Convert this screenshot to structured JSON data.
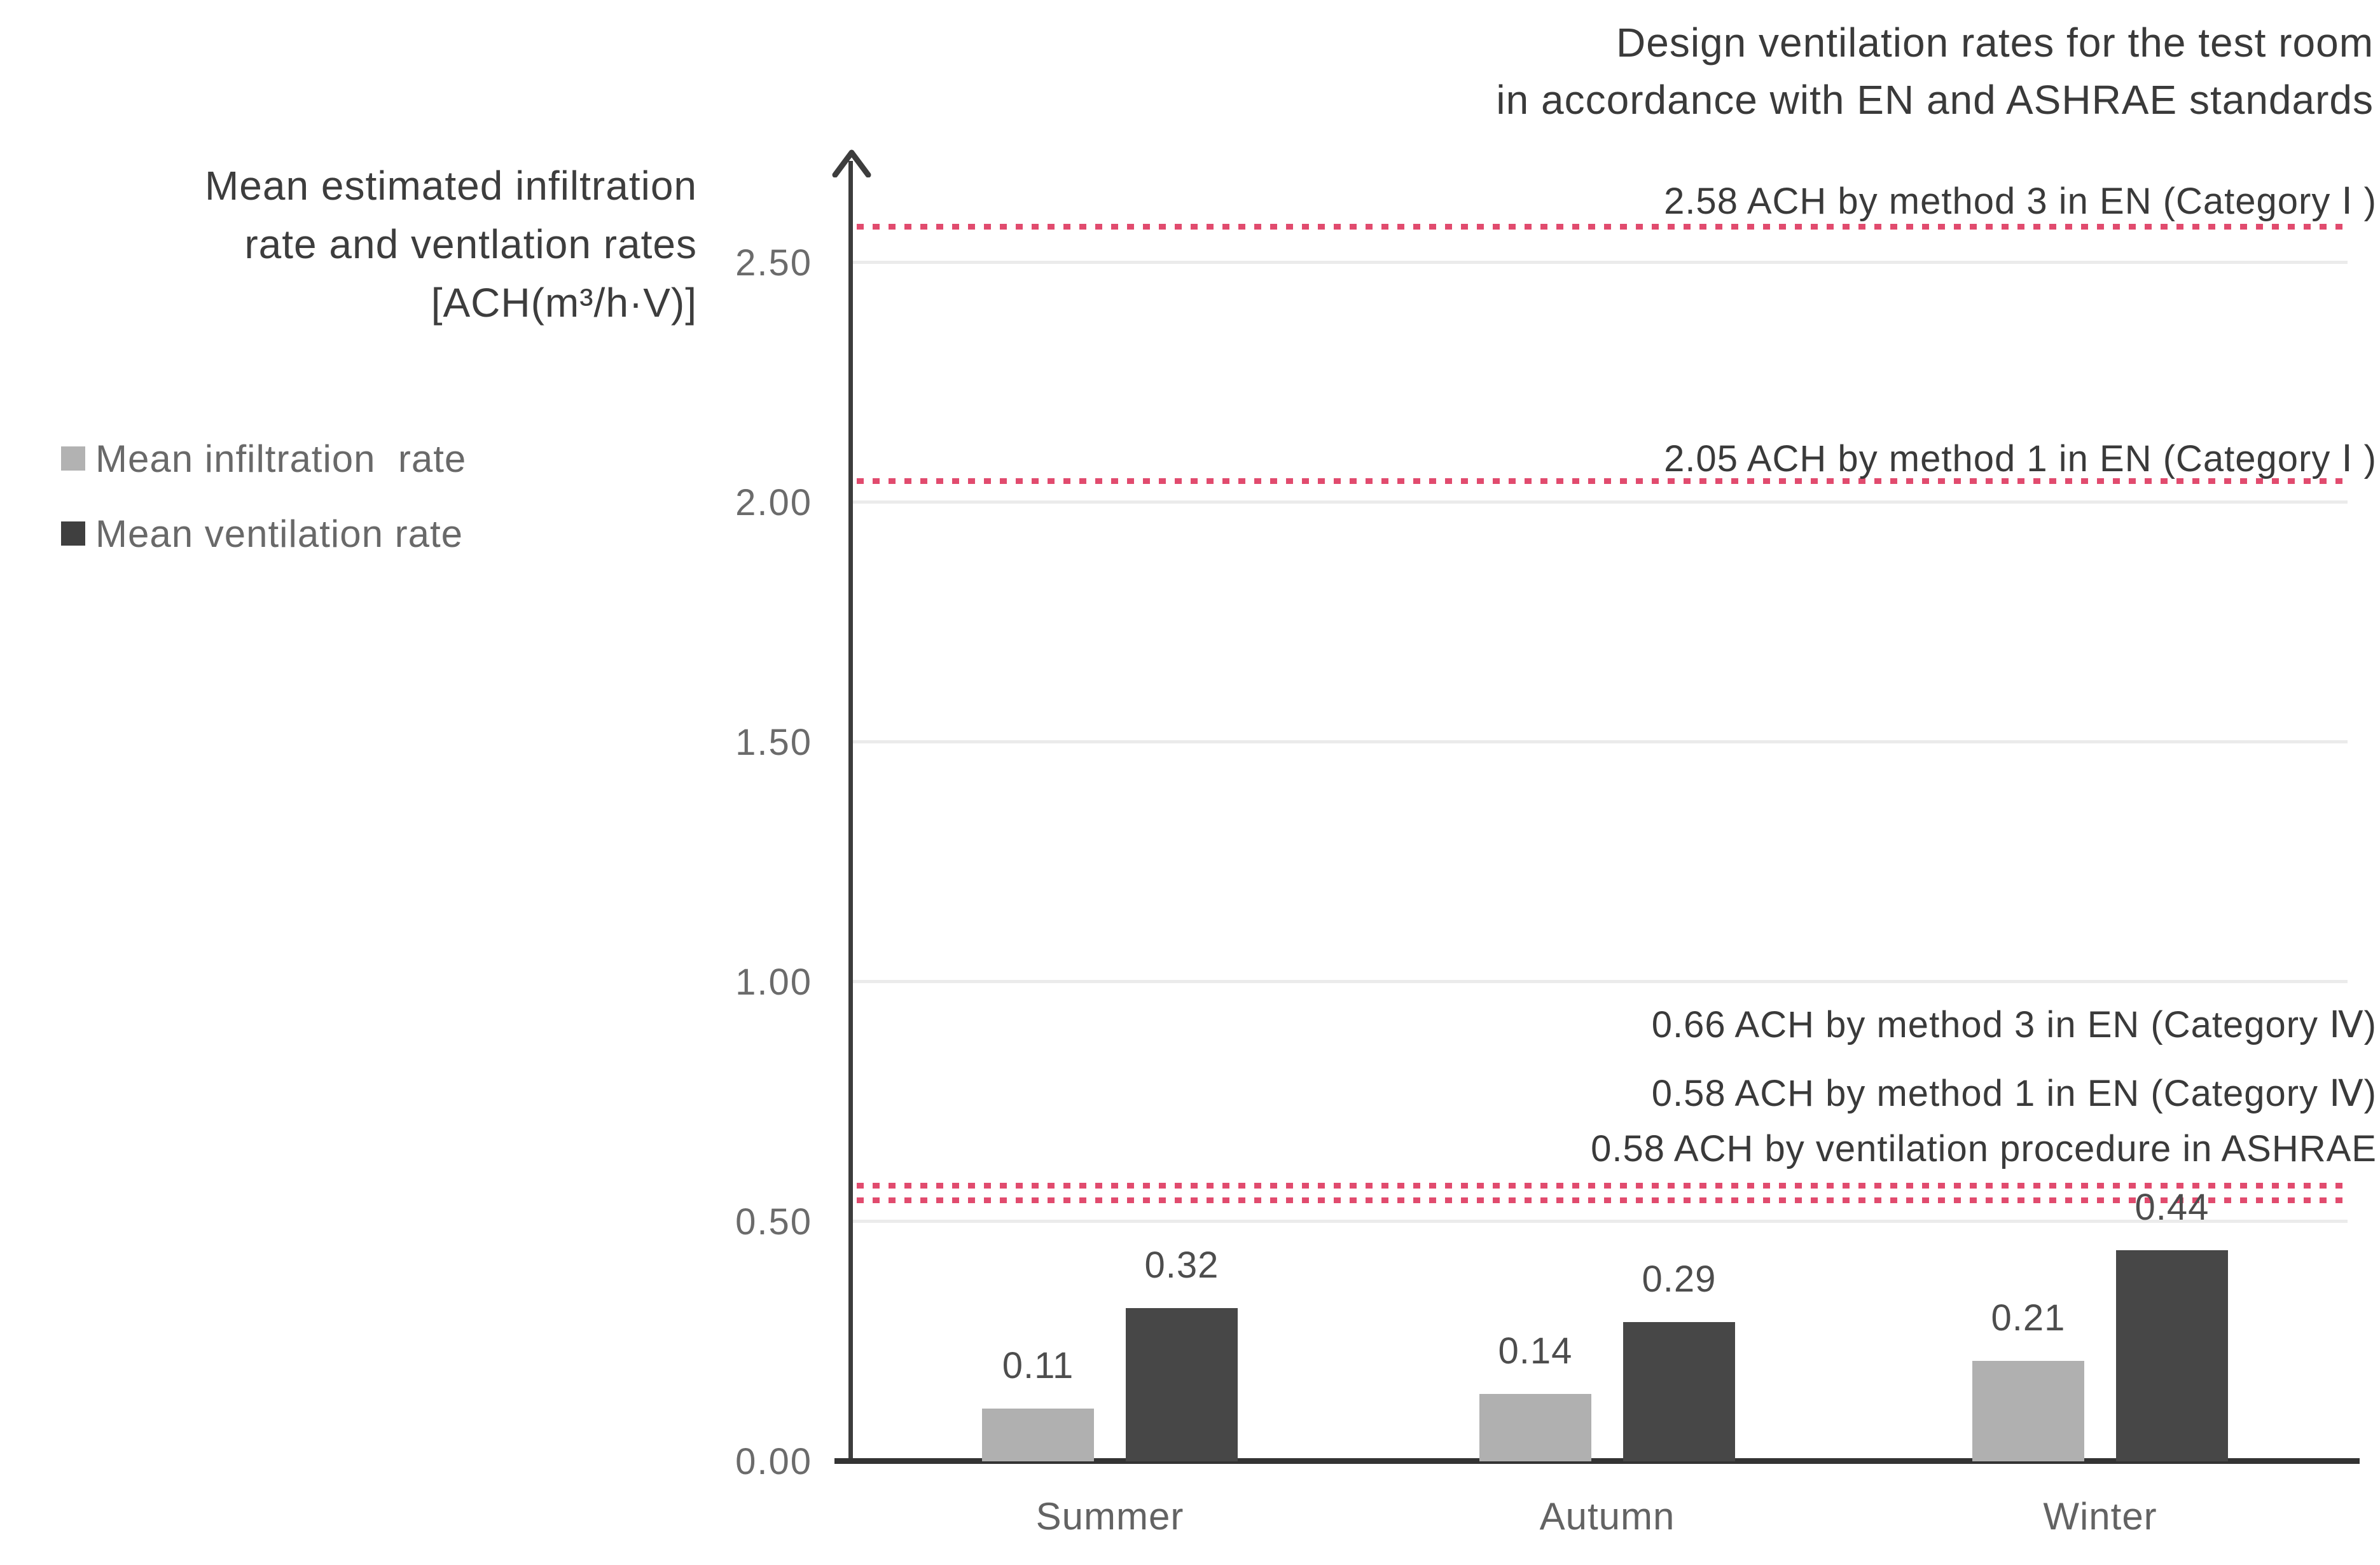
{
  "title": {
    "line1": "Design ventilation rates for the test room",
    "line2": "in accordance with EN and ASHRAE standards"
  },
  "y_axis_title": {
    "line1": "Mean estimated infiltration",
    "line2": "rate and ventlation rates",
    "line3": "[ACH(m³/h·V)]"
  },
  "legend": [
    {
      "label": "Mean infiltration  rate",
      "color": "#b2b2b2"
    },
    {
      "label": "Mean ventilation rate",
      "color": "#3f3f3f"
    }
  ],
  "chart_data": {
    "type": "bar",
    "title": "Design ventilation rates for the test room in accordance with EN and ASHRAE standards",
    "ylabel": "Mean estimated infiltration rate and ventlation rates [ACH(m³/h·V)]",
    "categories": [
      "Summer",
      "Autumn",
      "Winter"
    ],
    "series": [
      {
        "name": "Mean infiltration rate",
        "color": "#b0b0b0",
        "values": [
          0.11,
          0.14,
          0.21
        ]
      },
      {
        "name": "Mean ventilation rate",
        "color": "#474747",
        "values": [
          0.32,
          0.29,
          0.44
        ]
      }
    ],
    "yticks": [
      0.0,
      0.5,
      1.0,
      1.5,
      2.0,
      2.5
    ],
    "ylim": [
      0,
      2.72
    ],
    "grid": "horizontal",
    "legend_position": "top-left",
    "reference_line_color": "#e14b6e",
    "reference_lines": [
      {
        "label": "2.58 ACH by method 3 in EN (Category Ⅰ )",
        "value": 2.58,
        "line": true
      },
      {
        "label": "2.05 ACH by method 1 in EN (Category Ⅰ )",
        "value": 2.05,
        "line": true
      },
      {
        "label": "0.66 ACH by method 3 in EN (Category Ⅳ)",
        "value": 0.66,
        "line": false
      },
      {
        "label": "0.58 ACH by method 1 in EN (Category Ⅳ)",
        "value": 0.58,
        "line": true
      },
      {
        "label": "0.58 ACH by ventilation procedure in ASHRAE",
        "value": 0.58,
        "line": true
      }
    ]
  }
}
